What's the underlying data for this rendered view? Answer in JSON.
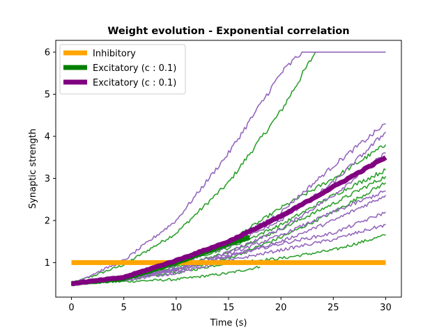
{
  "chart_data": {
    "type": "line",
    "title": "Weight evolution - Exponential correlation",
    "xlabel": "Time (s)",
    "ylabel": "Synaptic strength",
    "xlim": [
      -1.5,
      31.5
    ],
    "ylim": [
      0.18,
      6.28
    ],
    "xticks": [
      0,
      5,
      10,
      15,
      20,
      25,
      30
    ],
    "yticks": [
      1,
      2,
      3,
      4,
      5,
      6
    ],
    "grid": false,
    "legend_position": "upper-left",
    "colors": {
      "inhibitory": "#ffa500",
      "excitatory_mean_1": "#008000",
      "excitatory_mean_2": "#800080",
      "excitatory_group_1": "#2ca02c",
      "excitatory_group_2": "#9467bd"
    },
    "legend": [
      {
        "label": "Inhibitory",
        "color": "#ffa500"
      },
      {
        "label": "Excitatory (c : 0.1)",
        "color": "#008000"
      },
      {
        "label": "Excitatory (c : 0.1)",
        "color": "#800080"
      }
    ],
    "series": [
      {
        "group": "inhibitory",
        "role": "mean",
        "color": "#ffa500",
        "x": [
          0,
          30
        ],
        "y": [
          1.0,
          1.0
        ]
      },
      {
        "group": "excitatory_1",
        "role": "mean",
        "color": "#008000",
        "x": [
          0,
          5,
          10,
          15,
          17
        ],
        "y": [
          0.5,
          0.62,
          1.0,
          1.45,
          1.6
        ]
      },
      {
        "group": "excitatory_2",
        "role": "mean",
        "color": "#800080",
        "x": [
          0,
          5,
          10,
          15,
          20,
          25,
          30
        ],
        "y": [
          0.5,
          0.65,
          1.05,
          1.5,
          2.1,
          2.8,
          3.5
        ]
      },
      {
        "group": "excitatory_1",
        "role": "trace",
        "color": "#2ca02c",
        "x": [
          0,
          5,
          10,
          15,
          20,
          23.3
        ],
        "y": [
          0.5,
          0.95,
          1.7,
          2.9,
          4.6,
          6.0
        ]
      },
      {
        "group": "excitatory_1",
        "role": "trace",
        "color": "#2ca02c",
        "x": [
          0,
          5,
          10,
          15,
          18
        ],
        "y": [
          0.5,
          0.55,
          0.6,
          0.75,
          0.9
        ]
      },
      {
        "group": "excitatory_1",
        "role": "trace",
        "color": "#2ca02c",
        "x": [
          0,
          5,
          10,
          15,
          20,
          25,
          30
        ],
        "y": [
          0.5,
          0.6,
          0.75,
          1.0,
          1.1,
          1.3,
          1.65
        ]
      },
      {
        "group": "excitatory_1",
        "role": "trace",
        "color": "#2ca02c",
        "x": [
          0,
          5,
          10,
          15,
          20,
          25,
          30
        ],
        "y": [
          0.5,
          0.65,
          0.95,
          1.5,
          2.3,
          3.0,
          3.8
        ]
      },
      {
        "group": "excitatory_1",
        "role": "trace",
        "color": "#2ca02c",
        "x": [
          0,
          5,
          10,
          15,
          20,
          25,
          30
        ],
        "y": [
          0.5,
          0.62,
          0.9,
          1.25,
          1.8,
          2.4,
          3.05
        ]
      },
      {
        "group": "excitatory_1",
        "role": "trace",
        "color": "#2ca02c",
        "x": [
          0,
          5,
          10,
          15,
          20,
          25,
          30
        ],
        "y": [
          0.5,
          0.6,
          0.82,
          1.1,
          1.6,
          2.2,
          2.9
        ]
      },
      {
        "group": "excitatory_1",
        "role": "trace",
        "color": "#2ca02c",
        "x": [
          0,
          5,
          10,
          15,
          20,
          25,
          30
        ],
        "y": [
          0.5,
          0.68,
          1.0,
          1.35,
          1.9,
          2.6,
          3.2
        ]
      },
      {
        "group": "excitatory_2",
        "role": "trace",
        "color": "#9467bd",
        "x": [
          0,
          5,
          10,
          15,
          20,
          22,
          30
        ],
        "y": [
          0.5,
          1.05,
          2.0,
          3.6,
          5.5,
          6.0,
          6.0
        ]
      },
      {
        "group": "excitatory_2",
        "role": "trace",
        "color": "#9467bd",
        "x": [
          0,
          5,
          10,
          15,
          20,
          25,
          30
        ],
        "y": [
          0.5,
          0.62,
          0.95,
          1.45,
          2.2,
          3.3,
          4.3
        ]
      },
      {
        "group": "excitatory_2",
        "role": "trace",
        "color": "#9467bd",
        "x": [
          0,
          5,
          10,
          15,
          20,
          25,
          30
        ],
        "y": [
          0.5,
          0.6,
          0.85,
          1.25,
          1.8,
          2.6,
          3.6
        ]
      },
      {
        "group": "excitatory_2",
        "role": "trace",
        "color": "#9467bd",
        "x": [
          0,
          5,
          10,
          15,
          20,
          25,
          30
        ],
        "y": [
          0.5,
          0.62,
          0.85,
          1.15,
          1.5,
          2.0,
          2.6
        ]
      },
      {
        "group": "excitatory_2",
        "role": "trace",
        "color": "#9467bd",
        "x": [
          0,
          5,
          10,
          15,
          20,
          25,
          30
        ],
        "y": [
          0.5,
          0.6,
          0.8,
          1.15,
          1.45,
          1.7,
          2.2
        ]
      },
      {
        "group": "excitatory_2",
        "role": "trace",
        "color": "#9467bd",
        "x": [
          0,
          5,
          10,
          15,
          20,
          25,
          30
        ],
        "y": [
          0.5,
          0.58,
          0.75,
          1.05,
          1.3,
          1.55,
          1.9
        ]
      },
      {
        "group": "excitatory_2",
        "role": "trace",
        "color": "#9467bd",
        "x": [
          0,
          5,
          10,
          15,
          20,
          25,
          30
        ],
        "y": [
          0.5,
          0.64,
          0.95,
          1.4,
          2.0,
          2.9,
          4.1
        ]
      },
      {
        "group": "excitatory_2",
        "role": "trace",
        "color": "#9467bd",
        "x": [
          0,
          5,
          10,
          15,
          20,
          25,
          30
        ],
        "y": [
          0.5,
          0.6,
          0.85,
          1.2,
          1.65,
          2.2,
          2.7
        ]
      }
    ]
  }
}
